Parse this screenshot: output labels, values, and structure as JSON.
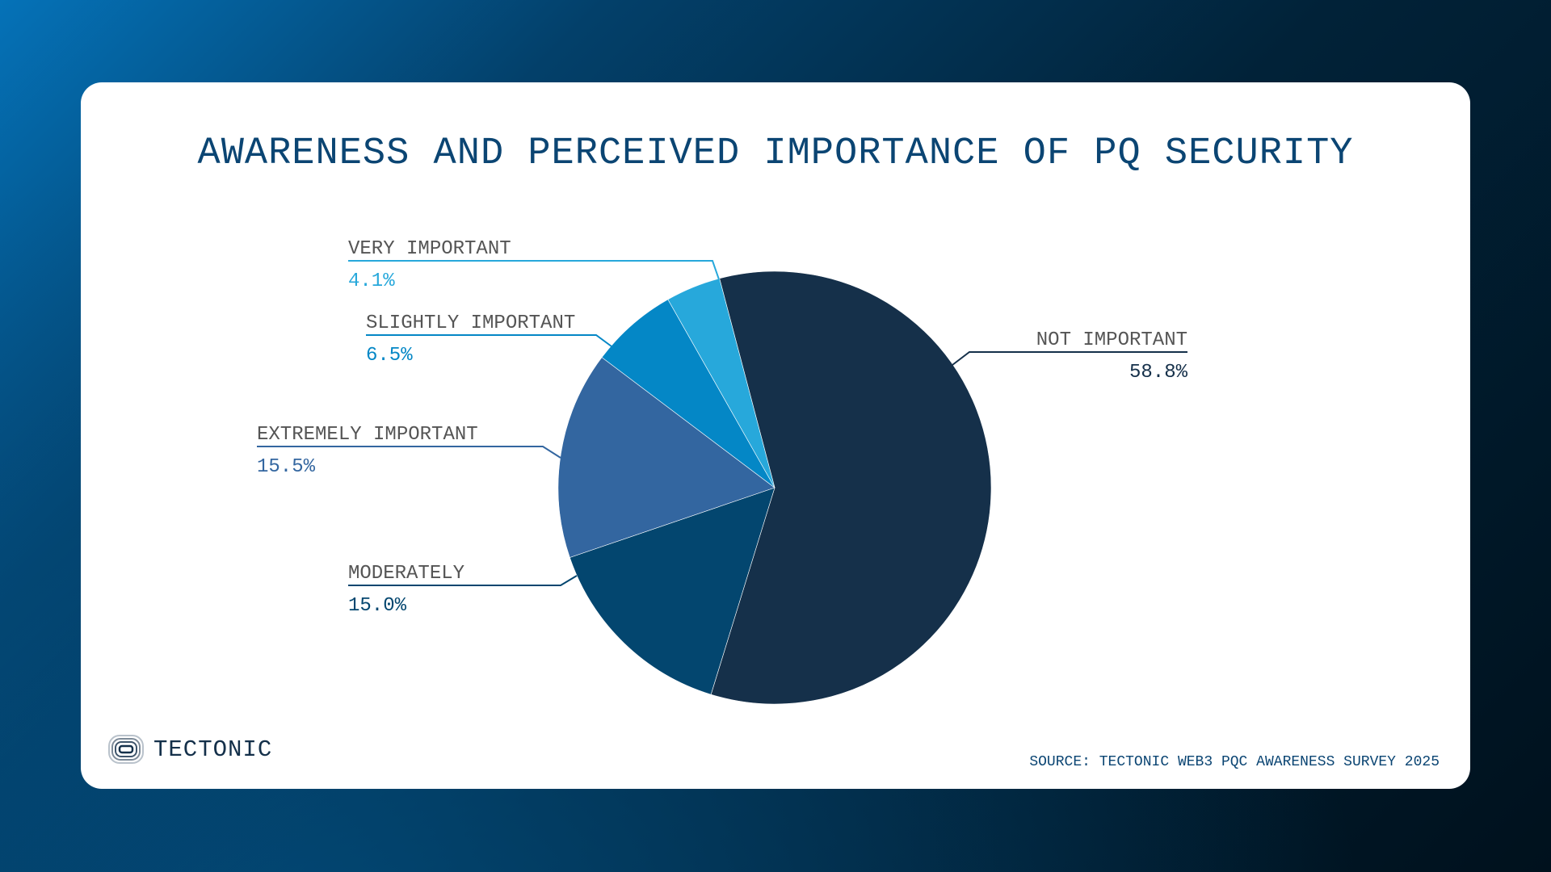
{
  "chart_data": {
    "type": "pie",
    "title": "AWARENESS AND PERCEIVED IMPORTANCE OF PQ SECURITY",
    "slices": [
      {
        "label": "NOT IMPORTANT",
        "value": 58.8,
        "display": "58.8%",
        "color": "#15304a"
      },
      {
        "label": "MODERATELY",
        "value": 15.0,
        "display": "15.0%",
        "color": "#03466f"
      },
      {
        "label": "EXTREMELY IMPORTANT",
        "value": 15.5,
        "display": "15.5%",
        "color": "#3366a0"
      },
      {
        "label": "SLIGHTLY IMPORTANT",
        "value": 6.5,
        "display": "6.5%",
        "color": "#0487c6"
      },
      {
        "label": "VERY IMPORTANT",
        "value": 4.1,
        "display": "4.1%",
        "color": "#27a8db"
      }
    ]
  },
  "brand": {
    "name": "TECTONIC"
  },
  "source": "SOURCE: TECTONIC WEB3 PQC AWARENESS SURVEY 2025"
}
